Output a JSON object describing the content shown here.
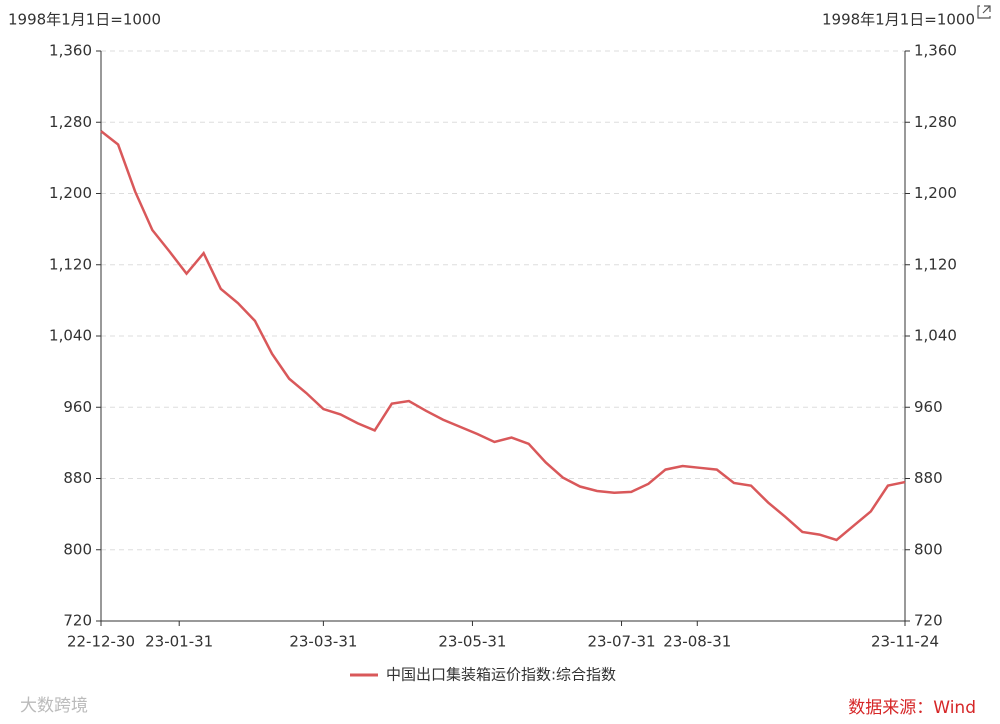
{
  "chart_data": {
    "type": "line",
    "y_label": "1998年1月1日=1000",
    "x": [
      "22-12-30",
      "23-01-06",
      "23-01-13",
      "23-01-20",
      "23-01-27",
      "23-02-03",
      "23-02-10",
      "23-02-17",
      "23-02-24",
      "23-03-03",
      "23-03-10",
      "23-03-17",
      "23-03-24",
      "23-03-31",
      "23-04-07",
      "23-04-14",
      "23-04-21",
      "23-04-28",
      "23-05-05",
      "23-05-12",
      "23-05-19",
      "23-05-26",
      "23-06-02",
      "23-06-09",
      "23-06-16",
      "23-06-23",
      "23-06-30",
      "23-07-07",
      "23-07-14",
      "23-07-21",
      "23-07-28",
      "23-08-04",
      "23-08-11",
      "23-08-18",
      "23-08-25",
      "23-09-01",
      "23-09-08",
      "23-09-15",
      "23-09-22",
      "23-09-29",
      "23-10-06",
      "23-10-13",
      "23-10-20",
      "23-10-27",
      "23-11-03",
      "23-11-10",
      "23-11-17",
      "23-11-24"
    ],
    "series": [
      {
        "name": "中国出口集装箱运价指数:综合指数",
        "color": "#d9585a",
        "values": [
          1270,
          1255,
          1202,
          1159,
          1135,
          1110,
          1133,
          1093,
          1077,
          1057,
          1020,
          992,
          976,
          958,
          952,
          942,
          934,
          964,
          967,
          956,
          946,
          938,
          930,
          921,
          926,
          919,
          898,
          881,
          871,
          866,
          864,
          865,
          874,
          890,
          894,
          892,
          890,
          875,
          872,
          853,
          837,
          820,
          817,
          811,
          827,
          843,
          872,
          876
        ]
      }
    ],
    "xlim": [
      "22-12-30",
      "23-11-24"
    ],
    "xticks": [
      "22-12-30",
      "23-01-31",
      "23-03-31",
      "23-05-31",
      "23-07-31",
      "23-08-31",
      "23-11-24"
    ],
    "ylim": [
      720,
      1360
    ],
    "yticks": [
      720,
      800,
      880,
      960,
      {
        "value": 1040,
        "label": "1,040"
      },
      {
        "value": 1120,
        "label": "1,120"
      },
      {
        "value": 1200,
        "label": "1,200"
      },
      {
        "value": 1280,
        "label": "1,280"
      },
      {
        "value": 1360,
        "label": "1,360"
      }
    ],
    "grid": true,
    "source": "数据来源：Wind",
    "watermark": "大数跨境"
  }
}
